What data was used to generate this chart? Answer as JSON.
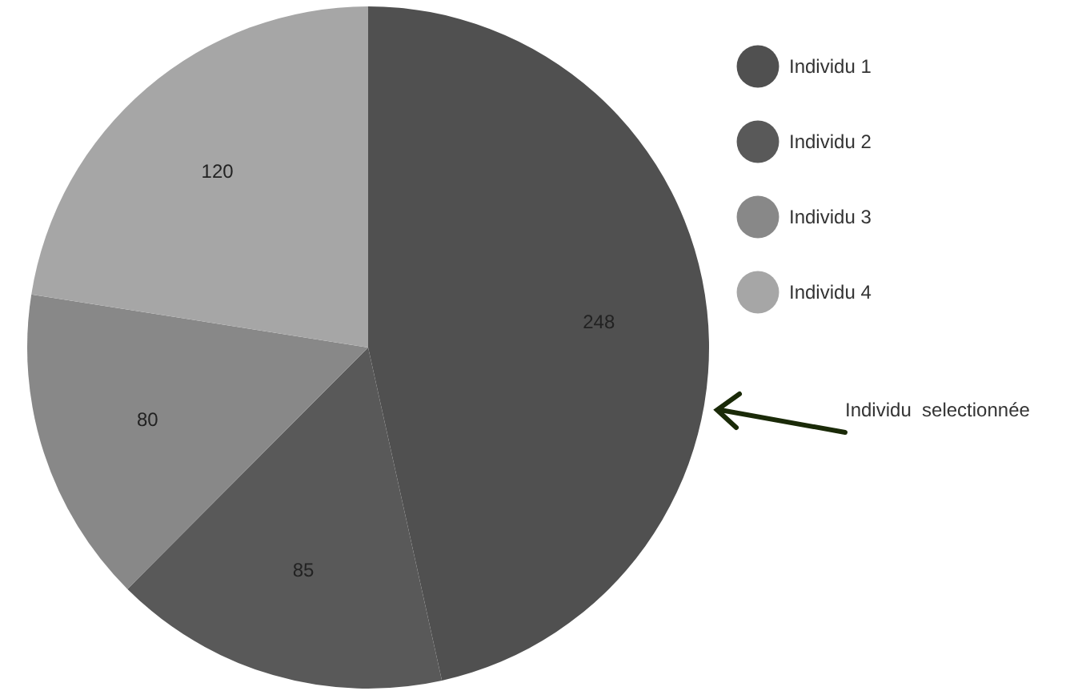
{
  "chart_data": {
    "type": "pie",
    "categories": [
      "Individu 1",
      "Individu 2",
      "Individu 3",
      "Individu 4"
    ],
    "values": [
      248,
      85,
      80,
      120
    ],
    "colors": [
      "#505050",
      "#595959",
      "#888888",
      "#a6a6a6"
    ],
    "data_labels": true,
    "legend": "top right",
    "annotations": [
      "Individu  selectionnée"
    ]
  }
}
